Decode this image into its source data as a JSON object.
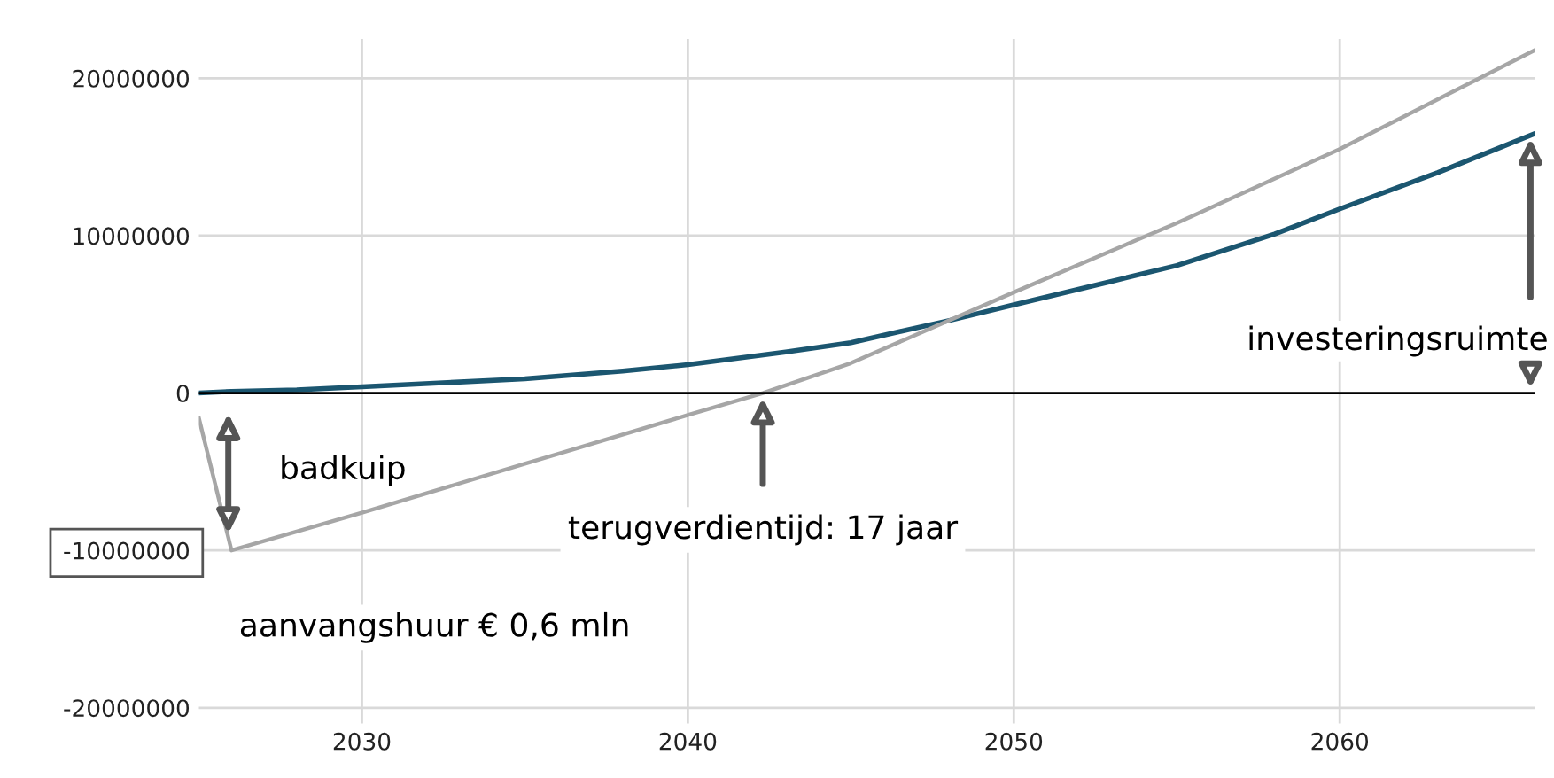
{
  "chart_data": {
    "type": "line",
    "series": [
      {
        "color": "#1b5670",
        "x": [
          2025,
          2026,
          2028,
          2030,
          2033,
          2035,
          2038,
          2040,
          2043,
          2045,
          2048,
          2050,
          2053,
          2055,
          2058,
          2060,
          2063,
          2066
        ],
        "values": [
          0,
          100000,
          200000,
          400000,
          700000,
          900000,
          1400000,
          1800000,
          2600000,
          3200000,
          4600000,
          5600000,
          7100000,
          8100000,
          10100000,
          11700000,
          14000000,
          16500000
        ]
      },
      {
        "color": "#a6a6a6",
        "x": [
          2025,
          2026,
          2030,
          2035,
          2040,
          2042.3,
          2045,
          2050,
          2055,
          2060,
          2066
        ],
        "values": [
          -1600000,
          -10000000,
          -7600000,
          -4500000,
          -1400000,
          0,
          1900000,
          6400000,
          10800000,
          15500000,
          21800000
        ]
      }
    ],
    "xlim": [
      2025,
      2066
    ],
    "xticks": [
      2030,
      2040,
      2050,
      2060
    ],
    "ylim": [
      -21000000,
      22500000
    ],
    "yticks": [
      -20000000,
      -10000000,
      0,
      10000000,
      20000000
    ],
    "grid": true,
    "ref_lines": [
      {
        "axis": "y",
        "value": 0,
        "color": "#000000"
      }
    ],
    "annotations": [
      "badkuip",
      {
        "text": "terugverdientijd: 17 jaar",
        "x": 2042.3,
        "y": 0
      },
      {
        "text": "investeringsruimte",
        "x": 2066,
        "y": 16500000
      },
      "aanvangshuur € 0,6 mln"
    ]
  }
}
